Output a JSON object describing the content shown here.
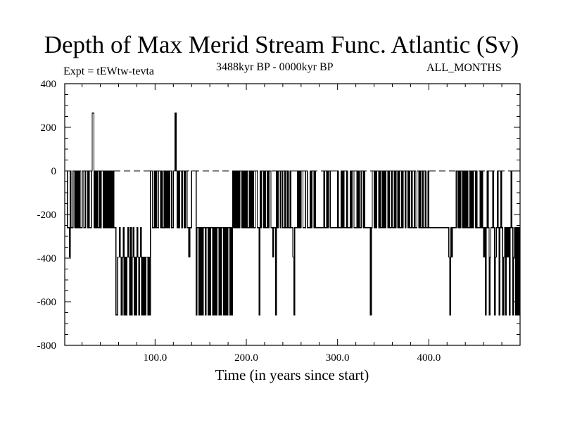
{
  "chart_data": {
    "type": "line",
    "title": "Depth of Max Merid Stream Func. Atlantic (Sv)",
    "subtitle_left": "Expt = tEWtw-tevta",
    "subtitle_center": "3488kyr BP - 0000kyr BP",
    "subtitle_right": "ALL_MONTHS",
    "xlabel": "Time (in years since start)",
    "ylabel": "",
    "xlim": [
      1,
      500
    ],
    "ylim": [
      -800,
      400
    ],
    "x_ticks": [
      100,
      200,
      300,
      400
    ],
    "x_tick_labels": [
      "100.0",
      "200.0",
      "300.0",
      "400.0"
    ],
    "y_ticks": [
      400,
      200,
      0,
      -200,
      -400,
      -600,
      -800
    ],
    "y_tick_labels": [
      "400",
      "200",
      "0",
      "-200",
      "-400",
      "-600",
      "-800"
    ],
    "reference_line": 0,
    "grid": false,
    "legend": "none",
    "levels": [
      265,
      0,
      -260,
      -395,
      -660
    ],
    "runs": [
      [
        1,
        0
      ],
      [
        4,
        -260
      ],
      [
        6,
        -395
      ],
      [
        7,
        0
      ],
      [
        8,
        -260
      ],
      [
        10,
        0
      ],
      [
        12,
        -260
      ],
      [
        13,
        0
      ],
      [
        14,
        -260
      ],
      [
        15,
        0
      ],
      [
        16,
        -260
      ],
      [
        17,
        0
      ],
      [
        18,
        -260
      ],
      [
        20,
        0
      ],
      [
        22,
        -260
      ],
      [
        24,
        0
      ],
      [
        26,
        -260
      ],
      [
        27,
        0
      ],
      [
        28,
        -260
      ],
      [
        30,
        0
      ],
      [
        31,
        265
      ],
      [
        33,
        -260
      ],
      [
        34,
        0
      ],
      [
        35,
        -260
      ],
      [
        36,
        0
      ],
      [
        37,
        -260
      ],
      [
        39,
        0
      ],
      [
        40,
        -260
      ],
      [
        41,
        0
      ],
      [
        43,
        -260
      ],
      [
        44,
        0
      ],
      [
        45,
        -260
      ],
      [
        46,
        0
      ],
      [
        47,
        -260
      ],
      [
        48,
        0
      ],
      [
        49,
        -260
      ],
      [
        50,
        0
      ],
      [
        51,
        -260
      ],
      [
        52,
        0
      ],
      [
        53,
        -260
      ],
      [
        54,
        0
      ],
      [
        55,
        -260
      ],
      [
        57,
        -660
      ],
      [
        59,
        -395
      ],
      [
        61,
        -260
      ],
      [
        62,
        -395
      ],
      [
        63,
        -660
      ],
      [
        64,
        -395
      ],
      [
        65,
        -260
      ],
      [
        66,
        -660
      ],
      [
        67,
        -395
      ],
      [
        68,
        -660
      ],
      [
        69,
        -395
      ],
      [
        70,
        -260
      ],
      [
        71,
        -395
      ],
      [
        72,
        -660
      ],
      [
        73,
        -260
      ],
      [
        74,
        -660
      ],
      [
        75,
        -395
      ],
      [
        76,
        -260
      ],
      [
        77,
        -660
      ],
      [
        78,
        -395
      ],
      [
        79,
        -660
      ],
      [
        80,
        -260
      ],
      [
        81,
        -395
      ],
      [
        82,
        -660
      ],
      [
        83,
        -395
      ],
      [
        84,
        -260
      ],
      [
        85,
        -660
      ],
      [
        86,
        -395
      ],
      [
        87,
        -660
      ],
      [
        88,
        -395
      ],
      [
        89,
        -660
      ],
      [
        90,
        -395
      ],
      [
        92,
        -660
      ],
      [
        93,
        -395
      ],
      [
        94,
        -660
      ],
      [
        95,
        0
      ],
      [
        97,
        -260
      ],
      [
        99,
        0
      ],
      [
        100,
        -260
      ],
      [
        101,
        0
      ],
      [
        102,
        -260
      ],
      [
        104,
        0
      ],
      [
        106,
        -260
      ],
      [
        107,
        0
      ],
      [
        108,
        -260
      ],
      [
        110,
        0
      ],
      [
        111,
        -260
      ],
      [
        112,
        0
      ],
      [
        113,
        -260
      ],
      [
        114,
        0
      ],
      [
        115,
        -260
      ],
      [
        116,
        0
      ],
      [
        118,
        -260
      ],
      [
        120,
        0
      ],
      [
        122,
        265
      ],
      [
        123,
        0
      ],
      [
        124,
        -260
      ],
      [
        125,
        0
      ],
      [
        126,
        -260
      ],
      [
        127,
        0
      ],
      [
        129,
        -260
      ],
      [
        130,
        0
      ],
      [
        132,
        -260
      ],
      [
        133,
        0
      ],
      [
        135,
        -260
      ],
      [
        137,
        -395
      ],
      [
        138,
        -260
      ],
      [
        140,
        0
      ],
      [
        145,
        -660
      ],
      [
        146,
        -260
      ],
      [
        148,
        -660
      ],
      [
        149,
        -260
      ],
      [
        150,
        -660
      ],
      [
        151,
        -260
      ],
      [
        152,
        -660
      ],
      [
        153,
        -260
      ],
      [
        155,
        -660
      ],
      [
        156,
        -260
      ],
      [
        158,
        -660
      ],
      [
        159,
        -260
      ],
      [
        160,
        -660
      ],
      [
        161,
        -260
      ],
      [
        163,
        -660
      ],
      [
        164,
        -260
      ],
      [
        165,
        -660
      ],
      [
        166,
        -260
      ],
      [
        167,
        -660
      ],
      [
        168,
        -260
      ],
      [
        170,
        -660
      ],
      [
        171,
        -260
      ],
      [
        172,
        -660
      ],
      [
        173,
        -260
      ],
      [
        175,
        -660
      ],
      [
        176,
        -260
      ],
      [
        177,
        -660
      ],
      [
        178,
        -260
      ],
      [
        179,
        -660
      ],
      [
        180,
        -260
      ],
      [
        182,
        -660
      ],
      [
        183,
        -260
      ],
      [
        184,
        -660
      ],
      [
        185,
        0
      ],
      [
        186,
        -260
      ],
      [
        187,
        0
      ],
      [
        188,
        -260
      ],
      [
        189,
        0
      ],
      [
        190,
        -260
      ],
      [
        191,
        0
      ],
      [
        192,
        -260
      ],
      [
        193,
        0
      ],
      [
        195,
        -260
      ],
      [
        196,
        0
      ],
      [
        197,
        -260
      ],
      [
        198,
        0
      ],
      [
        199,
        -260
      ],
      [
        200,
        0
      ],
      [
        201,
        -260
      ],
      [
        203,
        0
      ],
      [
        204,
        -260
      ],
      [
        205,
        0
      ],
      [
        206,
        -260
      ],
      [
        207,
        0
      ],
      [
        208,
        -260
      ],
      [
        210,
        0
      ],
      [
        212,
        -260
      ],
      [
        214,
        -660
      ],
      [
        215,
        0
      ],
      [
        216,
        -260
      ],
      [
        217,
        0
      ],
      [
        219,
        -260
      ],
      [
        220,
        0
      ],
      [
        221,
        -260
      ],
      [
        223,
        0
      ],
      [
        224,
        -260
      ],
      [
        225,
        0
      ],
      [
        227,
        -260
      ],
      [
        229,
        -395
      ],
      [
        230,
        -260
      ],
      [
        232,
        -660
      ],
      [
        233,
        0
      ],
      [
        234,
        -260
      ],
      [
        235,
        0
      ],
      [
        237,
        -260
      ],
      [
        238,
        0
      ],
      [
        240,
        -260
      ],
      [
        242,
        0
      ],
      [
        243,
        -260
      ],
      [
        245,
        0
      ],
      [
        246,
        -260
      ],
      [
        248,
        0
      ],
      [
        249,
        -260
      ],
      [
        251,
        -395
      ],
      [
        252,
        -660
      ],
      [
        253,
        -260
      ],
      [
        256,
        0
      ],
      [
        257,
        -260
      ],
      [
        258,
        0
      ],
      [
        259,
        -260
      ],
      [
        260,
        0
      ],
      [
        262,
        -260
      ],
      [
        265,
        0
      ],
      [
        267,
        -260
      ],
      [
        270,
        0
      ],
      [
        271,
        -260
      ],
      [
        272,
        0
      ],
      [
        274,
        -260
      ],
      [
        275,
        0
      ],
      [
        276,
        -260
      ],
      [
        285,
        0
      ],
      [
        286,
        -260
      ],
      [
        288,
        0
      ],
      [
        289,
        -260
      ],
      [
        290,
        0
      ],
      [
        292,
        -260
      ],
      [
        300,
        0
      ],
      [
        301,
        -260
      ],
      [
        304,
        0
      ],
      [
        305,
        -260
      ],
      [
        306,
        0
      ],
      [
        307,
        -260
      ],
      [
        310,
        0
      ],
      [
        311,
        -260
      ],
      [
        314,
        0
      ],
      [
        315,
        -260
      ],
      [
        316,
        0
      ],
      [
        318,
        -260
      ],
      [
        321,
        0
      ],
      [
        322,
        -260
      ],
      [
        323,
        0
      ],
      [
        324,
        -260
      ],
      [
        326,
        0
      ],
      [
        328,
        -260
      ],
      [
        329,
        0
      ],
      [
        330,
        -260
      ],
      [
        336,
        -660
      ],
      [
        337,
        -260
      ],
      [
        338,
        0
      ],
      [
        340,
        -260
      ],
      [
        341,
        0
      ],
      [
        342,
        -260
      ],
      [
        343,
        0
      ],
      [
        345,
        -260
      ],
      [
        346,
        0
      ],
      [
        347,
        -260
      ],
      [
        349,
        0
      ],
      [
        350,
        -260
      ],
      [
        351,
        0
      ],
      [
        352,
        -260
      ],
      [
        353,
        0
      ],
      [
        355,
        -260
      ],
      [
        356,
        0
      ],
      [
        357,
        -260
      ],
      [
        359,
        0
      ],
      [
        360,
        -260
      ],
      [
        362,
        0
      ],
      [
        363,
        -260
      ],
      [
        364,
        0
      ],
      [
        366,
        -260
      ],
      [
        367,
        0
      ],
      [
        368,
        -260
      ],
      [
        370,
        0
      ],
      [
        371,
        -260
      ],
      [
        372,
        0
      ],
      [
        374,
        -260
      ],
      [
        375,
        0
      ],
      [
        377,
        -260
      ],
      [
        378,
        0
      ],
      [
        379,
        -260
      ],
      [
        381,
        0
      ],
      [
        382,
        -260
      ],
      [
        384,
        0
      ],
      [
        385,
        -260
      ],
      [
        387,
        0
      ],
      [
        389,
        -260
      ],
      [
        390,
        0
      ],
      [
        391,
        -260
      ],
      [
        393,
        0
      ],
      [
        394,
        -260
      ],
      [
        396,
        0
      ],
      [
        397,
        -260
      ],
      [
        399,
        0
      ],
      [
        400,
        -260
      ],
      [
        422,
        -395
      ],
      [
        423,
        -660
      ],
      [
        424,
        -260
      ],
      [
        425,
        -395
      ],
      [
        426,
        -260
      ],
      [
        430,
        0
      ],
      [
        432,
        -260
      ],
      [
        433,
        0
      ],
      [
        434,
        -260
      ],
      [
        435,
        0
      ],
      [
        437,
        -260
      ],
      [
        438,
        0
      ],
      [
        439,
        -260
      ],
      [
        440,
        0
      ],
      [
        441,
        -260
      ],
      [
        442,
        0
      ],
      [
        443,
        -260
      ],
      [
        445,
        0
      ],
      [
        446,
        -260
      ],
      [
        447,
        0
      ],
      [
        448,
        -260
      ],
      [
        449,
        0
      ],
      [
        451,
        -260
      ],
      [
        452,
        0
      ],
      [
        453,
        -260
      ],
      [
        456,
        0
      ],
      [
        457,
        -260
      ],
      [
        458,
        0
      ],
      [
        459,
        -260
      ],
      [
        460,
        -395
      ],
      [
        461,
        -260
      ],
      [
        462,
        -660
      ],
      [
        463,
        -260
      ],
      [
        464,
        0
      ],
      [
        465,
        -260
      ],
      [
        466,
        -660
      ],
      [
        467,
        -395
      ],
      [
        468,
        -260
      ],
      [
        470,
        0
      ],
      [
        471,
        -260
      ],
      [
        472,
        -660
      ],
      [
        473,
        -395
      ],
      [
        474,
        -260
      ],
      [
        475,
        0
      ],
      [
        476,
        -260
      ],
      [
        477,
        -660
      ],
      [
        478,
        -260
      ],
      [
        479,
        0
      ],
      [
        480,
        -260
      ],
      [
        481,
        -660
      ],
      [
        482,
        -395
      ],
      [
        483,
        -260
      ],
      [
        484,
        -660
      ],
      [
        485,
        -260
      ],
      [
        486,
        -395
      ],
      [
        487,
        -260
      ],
      [
        488,
        -660
      ],
      [
        489,
        -260
      ],
      [
        490,
        0
      ],
      [
        491,
        -260
      ],
      [
        492,
        -660
      ],
      [
        493,
        -395
      ],
      [
        494,
        -260
      ],
      [
        495,
        -660
      ],
      [
        496,
        -260
      ],
      [
        497,
        -660
      ],
      [
        498,
        -260
      ],
      [
        499,
        -660
      ]
    ]
  }
}
